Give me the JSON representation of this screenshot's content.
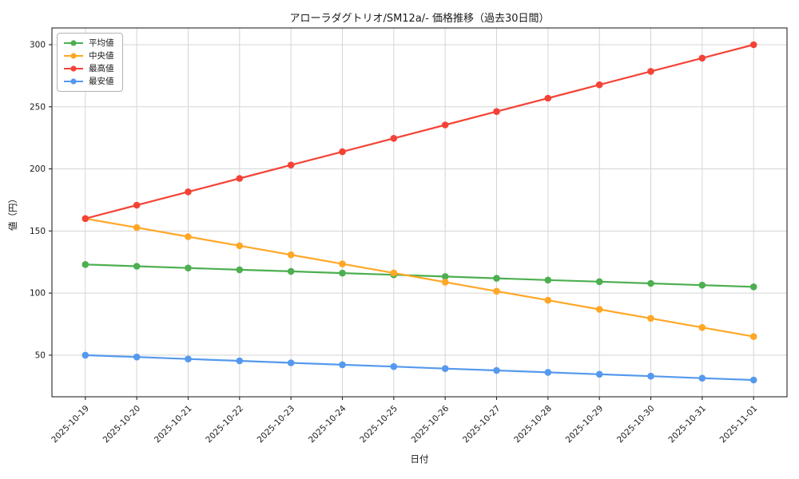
{
  "chart_data": {
    "type": "line",
    "title": "アローラダグトリオ/SM12a/- 価格推移（過去30日間）",
    "xlabel": "日付",
    "ylabel": "値（円）",
    "categories": [
      "2025-10-19",
      "2025-10-20",
      "2025-10-21",
      "2025-10-22",
      "2025-10-23",
      "2025-10-24",
      "2025-10-25",
      "2025-10-26",
      "2025-10-27",
      "2025-10-28",
      "2025-10-29",
      "2025-10-30",
      "2025-10-31",
      "2025-11-01"
    ],
    "series": [
      {
        "name": "平均値",
        "color": "#4caf50",
        "values": [
          123.0,
          121.6,
          120.2,
          118.8,
          117.5,
          116.1,
          114.7,
          113.3,
          111.9,
          110.5,
          109.2,
          107.8,
          106.4,
          105.0
        ]
      },
      {
        "name": "中央値",
        "color": "#ffa726",
        "values": [
          160.0,
          152.7,
          145.4,
          138.1,
          130.8,
          123.5,
          116.2,
          108.8,
          101.5,
          94.2,
          86.9,
          79.6,
          72.3,
          65.0
        ]
      },
      {
        "name": "最高値",
        "color": "#f44336",
        "values": [
          160.0,
          170.8,
          181.5,
          192.3,
          203.1,
          213.8,
          224.6,
          235.4,
          246.2,
          256.9,
          267.7,
          278.5,
          289.2,
          300.0
        ]
      },
      {
        "name": "最安値",
        "color": "#5599ee",
        "values": [
          50.0,
          48.5,
          46.9,
          45.4,
          43.8,
          42.3,
          40.8,
          39.2,
          37.7,
          36.2,
          34.6,
          33.1,
          31.5,
          30.0
        ]
      }
    ],
    "yticks": [
      50,
      100,
      150,
      200,
      250,
      300
    ],
    "ylim": [
      16.5,
      313.5
    ],
    "xlim": [
      -0.65,
      13.65
    ],
    "grid": true,
    "legend_position": "top-left",
    "marker": "circle"
  }
}
